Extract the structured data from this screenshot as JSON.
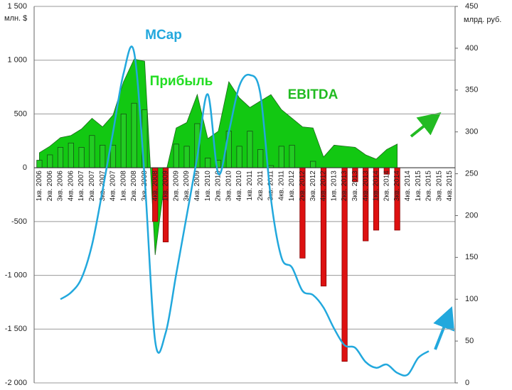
{
  "chart_data": {
    "type": "combo",
    "y_axis_label": "млн. $",
    "y2_axis_label": "млрд. руб.",
    "annotations": [
      "MCap",
      "Прибыль",
      "EBITDA"
    ],
    "categories": [
      "1кв. 2006",
      "2кв. 2006",
      "3кв. 2006",
      "4кв. 2006",
      "1кв. 2007",
      "2кв. 2007",
      "3кв. 2007",
      "4кв. 2007",
      "1кв. 2008",
      "2кв. 2008",
      "3кв. 2008",
      "4кв. 2008",
      "1кв. 2009",
      "2кв. 2009",
      "3кв. 2009",
      "4кв. 2009",
      "1кв. 2010",
      "2кв. 2010",
      "3кв. 2010",
      "4кв. 2010",
      "1кв. 2011",
      "2кв. 2011",
      "3кв. 2011",
      "4кв. 2011",
      "1кв. 2012",
      "2кв. 2012",
      "3кв. 2012",
      "4кв. 2012",
      "1кв. 2013",
      "2кв. 2013",
      "3кв. 2013",
      "4кв. 2013",
      "1кв. 2014",
      "2кв. 2014",
      "3кв. 2014",
      "4кв. 2014",
      "1кв. 2015",
      "2кв. 2015",
      "3кв. 2015",
      "4кв. 2015"
    ],
    "series": [
      {
        "name": "EBITDA",
        "kind": "area",
        "color": "#12c812",
        "values": [
          140,
          200,
          280,
          300,
          360,
          460,
          380,
          490,
          800,
          1010,
          990,
          -810,
          -50,
          370,
          420,
          680,
          270,
          340,
          800,
          650,
          560,
          620,
          680,
          540,
          460,
          380,
          370,
          100,
          210,
          200,
          190,
          120,
          80,
          170,
          220,
          null,
          null,
          null,
          null,
          null
        ]
      },
      {
        "name": "Прибыль",
        "kind": "bar",
        "color": "#22cc22",
        "negative_color": "#dd1111",
        "values": [
          70,
          120,
          190,
          230,
          190,
          300,
          210,
          210,
          500,
          600,
          540,
          -500,
          -690,
          220,
          200,
          410,
          90,
          70,
          340,
          200,
          340,
          170,
          20,
          200,
          210,
          -840,
          60,
          -1100,
          null,
          -1800,
          -130,
          -680,
          -580,
          -60,
          -580,
          null,
          null,
          null,
          null,
          null
        ]
      },
      {
        "name": "MCap",
        "kind": "line",
        "axis": "y2",
        "color": "#22a8dd",
        "values": [
          null,
          null,
          100,
          108,
          125,
          165,
          230,
          300,
          370,
          395,
          245,
          50,
          60,
          130,
          200,
          270,
          345,
          250,
          300,
          355,
          368,
          345,
          220,
          150,
          138,
          110,
          105,
          90,
          65,
          45,
          42,
          25,
          18,
          22,
          12,
          10,
          30,
          38,
          null,
          null
        ]
      }
    ],
    "ylim": [
      -2000,
      1500
    ],
    "yticks": [
      {
        "value": -2000,
        "label": "-2 000"
      },
      {
        "value": -1500,
        "label": "-1 500"
      },
      {
        "value": -1000,
        "label": "-1 000"
      },
      -500,
      0,
      500,
      {
        "value": 1000,
        "label": "1 000"
      },
      {
        "value": 1500,
        "label": "1 500"
      }
    ],
    "y2lim": [
      0,
      450
    ],
    "y2ticks": [
      0,
      50,
      100,
      150,
      200,
      250,
      300,
      350,
      400,
      450
    ],
    "grid": true
  }
}
